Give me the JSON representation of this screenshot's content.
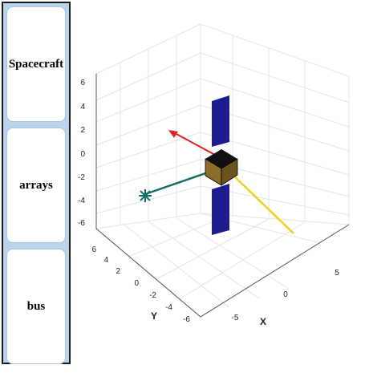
{
  "sidebar": {
    "buttons": [
      {
        "label": "Spacecraft"
      },
      {
        "label": "arrays"
      },
      {
        "label": "bus"
      }
    ]
  },
  "plot": {
    "zlabel": "",
    "ylabel": "Y",
    "xlabel": "X",
    "z_ticks": [
      "6",
      "4",
      "2",
      "0",
      "-2",
      "-4",
      "-6"
    ],
    "y_ticks": [
      "6",
      "4",
      "2",
      "0",
      "-2",
      "-4",
      "-6"
    ],
    "x_ticks": [
      "-5",
      "0",
      "5"
    ],
    "colors": {
      "array": "#1c1c8c",
      "bus_front": "#8a6d2a",
      "bus_top": "#111111",
      "arrow_red": "#e02020",
      "arrow_green": "#136d63",
      "arrow_yellow": "#f0d020",
      "grid": "#e3e3e3",
      "axis": "#555555"
    }
  }
}
